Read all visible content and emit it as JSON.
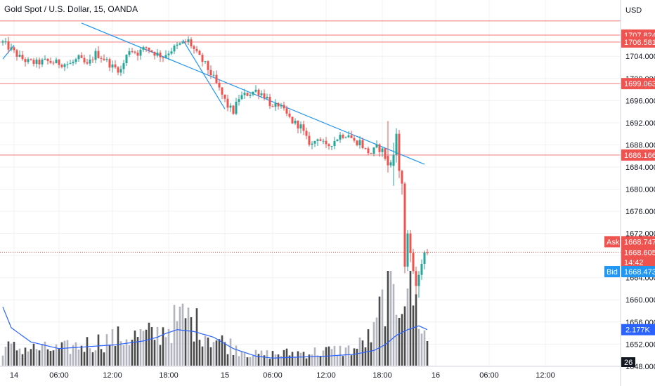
{
  "header": {
    "title": "Gold Spot / U.S. Dollar, 15, OANDA",
    "currency": "USD"
  },
  "colors": {
    "up": "#26a69a",
    "down": "#ef5350",
    "grid": "#eef0f3",
    "level_line": "#f7a4a4",
    "level_badge": "#ef5350",
    "trend_line": "#2196f3",
    "volume_up": "#b2b5be",
    "volume_down": "#4a4a4a",
    "volume_ma": "#2962ff",
    "ask": "#ef5350",
    "bid": "#2196f3",
    "time_badge": "#ef5350",
    "vol_badge": "#2962ff"
  },
  "chart_data": {
    "type": "candlestick",
    "symbol": "XAUUSD",
    "interval": "15",
    "y_axis": {
      "min": 1649,
      "max": 1711,
      "ticks": [
        1704,
        1700,
        1696,
        1692,
        1688,
        1684,
        1680,
        1676,
        1672,
        1668,
        1664,
        1660,
        1656,
        1652,
        1648
      ],
      "tick_labels": [
        "1704.000",
        "1700.000",
        "1696.000",
        "1692.000",
        "1688.000",
        "1684.000",
        "1680.000",
        "1676.000",
        "1672.000",
        "1668.000",
        "1664.000",
        "1660.000",
        "1656.000",
        "1652.000",
        "1648.000"
      ]
    },
    "x_axis": {
      "start_bar": 0,
      "end_bar": 208,
      "ticks": [
        {
          "bar": 4,
          "label": "14"
        },
        {
          "bar": 20,
          "label": "06:00"
        },
        {
          "bar": 39,
          "label": "12:00"
        },
        {
          "bar": 59,
          "label": "18:00"
        },
        {
          "bar": 79,
          "label": "15"
        },
        {
          "bar": 96,
          "label": "06:00"
        },
        {
          "bar": 115,
          "label": "12:00"
        },
        {
          "bar": 135,
          "label": "18:00"
        },
        {
          "bar": 154,
          "label": "16"
        },
        {
          "bar": 173,
          "label": "06:00"
        },
        {
          "bar": 193,
          "label": "12:00"
        }
      ]
    },
    "price_anchors": [
      [
        0,
        1706.5
      ],
      [
        3,
        1705.2
      ],
      [
        6,
        1703.8
      ],
      [
        9,
        1703.0
      ],
      [
        12,
        1702.8
      ],
      [
        15,
        1703.1
      ],
      [
        18,
        1702.9
      ],
      [
        21,
        1702.7
      ],
      [
        24,
        1702.6
      ],
      [
        27,
        1703.6
      ],
      [
        30,
        1702.3
      ],
      [
        33,
        1704.5
      ],
      [
        36,
        1703.6
      ],
      [
        39,
        1702.1
      ],
      [
        42,
        1701.5
      ],
      [
        45,
        1705.3
      ],
      [
        48,
        1704.6
      ],
      [
        51,
        1705.6
      ],
      [
        54,
        1704.6
      ],
      [
        57,
        1704.0
      ],
      [
        60,
        1705.2
      ],
      [
        63,
        1706.1
      ],
      [
        66,
        1706.8
      ],
      [
        69,
        1704.4
      ],
      [
        72,
        1702.5
      ],
      [
        75,
        1700.0
      ],
      [
        78,
        1697.0
      ],
      [
        80,
        1695.0
      ],
      [
        82,
        1694.0
      ],
      [
        84,
        1696.5
      ],
      [
        87,
        1697.2
      ],
      [
        90,
        1697.8
      ],
      [
        92,
        1697.3
      ],
      [
        94,
        1696.5
      ],
      [
        96,
        1694.5
      ],
      [
        98,
        1695.3
      ],
      [
        100,
        1694.0
      ],
      [
        103,
        1692.2
      ],
      [
        106,
        1691.3
      ],
      [
        108,
        1689.0
      ],
      [
        110,
        1688.0
      ],
      [
        112,
        1689.5
      ],
      [
        115,
        1687.5
      ],
      [
        118,
        1688.8
      ],
      [
        120,
        1689.7
      ],
      [
        123,
        1690.0
      ],
      [
        125,
        1688.5
      ],
      [
        127,
        1688.6
      ],
      [
        129,
        1687.0
      ],
      [
        131,
        1686.5
      ],
      [
        133,
        1687.5
      ],
      [
        135,
        1687.0
      ],
      [
        137,
        1684.5
      ],
      [
        139,
        1684.8
      ],
      [
        140,
        1687.0
      ],
      [
        141,
        1685.5
      ],
      [
        142,
        1684.0
      ],
      [
        143,
        1681.0
      ],
      [
        144,
        1667.0
      ],
      [
        145,
        1669.0
      ],
      [
        146,
        1666.0
      ],
      [
        147,
        1664.5
      ],
      [
        148,
        1663.5
      ],
      [
        149,
        1665.5
      ],
      [
        150,
        1668.0
      ],
      [
        151,
        1668.6
      ]
    ],
    "special_bars": [
      {
        "i": 137,
        "o": 1686.0,
        "h": 1692.3,
        "l": 1683.0,
        "c": 1684.3
      },
      {
        "i": 139,
        "o": 1684.2,
        "h": 1688.4,
        "l": 1680.6,
        "c": 1686.2
      },
      {
        "i": 140,
        "o": 1686.2,
        "h": 1691.0,
        "l": 1684.8,
        "c": 1690.0
      },
      {
        "i": 141,
        "o": 1690.0,
        "h": 1690.7,
        "l": 1682.0,
        "c": 1683.3
      },
      {
        "i": 142,
        "o": 1683.3,
        "h": 1683.5,
        "l": 1679.0,
        "c": 1681.0
      },
      {
        "i": 143,
        "o": 1681.0,
        "h": 1681.3,
        "l": 1664.8,
        "c": 1666.0
      },
      {
        "i": 144,
        "o": 1666.0,
        "h": 1672.6,
        "l": 1665.2,
        "c": 1672.0
      },
      {
        "i": 145,
        "o": 1672.0,
        "h": 1672.6,
        "l": 1666.8,
        "c": 1668.5
      },
      {
        "i": 146,
        "o": 1668.5,
        "h": 1669.2,
        "l": 1664.7,
        "c": 1665.2
      },
      {
        "i": 147,
        "o": 1665.2,
        "h": 1666.0,
        "l": 1661.0,
        "c": 1662.5
      },
      {
        "i": 148,
        "o": 1662.5,
        "h": 1665.2,
        "l": 1660.4,
        "c": 1664.5
      },
      {
        "i": 149,
        "o": 1664.5,
        "h": 1667.3,
        "l": 1663.6,
        "c": 1666.5
      },
      {
        "i": 150,
        "o": 1666.5,
        "h": 1668.9,
        "l": 1665.5,
        "c": 1668.6
      }
    ],
    "horizontal_levels": [
      {
        "price": 1710.4,
        "label": ""
      },
      {
        "price": 1707.824,
        "label": "1707.824"
      },
      {
        "price": 1706.581,
        "label": "1706.581"
      },
      {
        "price": 1699.063,
        "label": "1699.063"
      },
      {
        "price": 1686.166,
        "label": "1686.166"
      }
    ],
    "trend_lines": [
      {
        "from": [
          0,
          1703.5
        ],
        "to": [
          4,
          1706.0
        ]
      },
      {
        "from": [
          28,
          1710.0
        ],
        "to": [
          150,
          1684.5
        ]
      },
      {
        "from": [
          64,
          1707.0
        ],
        "to": [
          79,
          1694.5
        ]
      }
    ],
    "current_price_line": 1668.605,
    "price_badges": [
      {
        "key": "ask",
        "label": "Ask",
        "value": "1668.747",
        "price": 1670.5
      },
      {
        "key": "last",
        "label": "",
        "value": "1668.605",
        "sub": "14:42",
        "price": 1668.6
      },
      {
        "key": "bid",
        "label": "Bid",
        "value": "1668.473",
        "price": 1665.1
      }
    ],
    "volume_badge": {
      "value": "2.177K"
    },
    "volume_scale_label": "26",
    "volume_profile": {
      "anchors": [
        [
          0,
          0.2
        ],
        [
          20,
          0.18
        ],
        [
          40,
          0.3
        ],
        [
          55,
          0.35
        ],
        [
          65,
          0.55
        ],
        [
          75,
          0.3
        ],
        [
          90,
          0.12
        ],
        [
          110,
          0.15
        ],
        [
          125,
          0.18
        ],
        [
          132,
          0.35
        ],
        [
          136,
          0.8
        ],
        [
          140,
          0.7
        ],
        [
          144,
          1.0
        ],
        [
          148,
          0.55
        ],
        [
          151,
          0.25
        ]
      ],
      "ma": [
        [
          0,
          0.62
        ],
        [
          3,
          0.4
        ],
        [
          10,
          0.25
        ],
        [
          20,
          0.18
        ],
        [
          40,
          0.22
        ],
        [
          50,
          0.26
        ],
        [
          55,
          0.3
        ],
        [
          58,
          0.34
        ],
        [
          62,
          0.38
        ],
        [
          68,
          0.36
        ],
        [
          75,
          0.3
        ],
        [
          82,
          0.18
        ],
        [
          90,
          0.1
        ],
        [
          96,
          0.08
        ],
        [
          105,
          0.09
        ],
        [
          115,
          0.1
        ],
        [
          125,
          0.12
        ],
        [
          132,
          0.16
        ],
        [
          136,
          0.22
        ],
        [
          140,
          0.32
        ],
        [
          144,
          0.38
        ],
        [
          148,
          0.42
        ],
        [
          151,
          0.38
        ]
      ]
    }
  }
}
